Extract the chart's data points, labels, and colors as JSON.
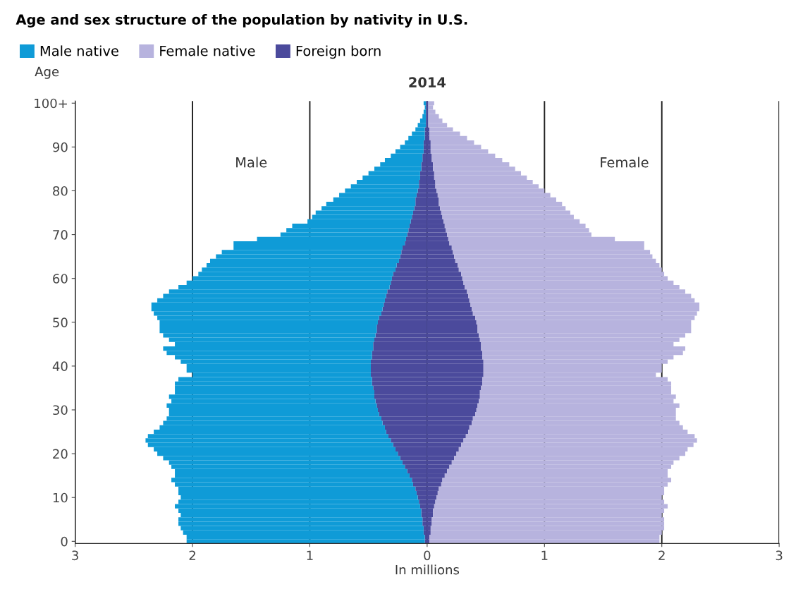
{
  "chart_data": {
    "type": "bar",
    "orientation": "horizontal",
    "stacked": true,
    "title": "Age and sex structure of the population by nativity in U.S.",
    "subtitle": "2014",
    "xlabel": "In millions",
    "ylabel": "Age",
    "annotations": [
      "Male",
      "Female"
    ],
    "categories": [
      "100+",
      null,
      null,
      null,
      null,
      null,
      null,
      null,
      null,
      null,
      "90",
      null,
      null,
      null,
      null,
      null,
      null,
      null,
      null,
      null,
      "80",
      null,
      null,
      null,
      null,
      null,
      null,
      null,
      null,
      null,
      "70",
      null,
      null,
      null,
      null,
      null,
      null,
      null,
      null,
      null,
      "60",
      null,
      null,
      null,
      null,
      null,
      null,
      null,
      null,
      null,
      "50",
      null,
      null,
      null,
      null,
      null,
      null,
      null,
      null,
      null,
      "40",
      null,
      null,
      null,
      null,
      null,
      null,
      null,
      null,
      null,
      "30",
      null,
      null,
      null,
      null,
      null,
      null,
      null,
      null,
      null,
      "20",
      null,
      null,
      null,
      null,
      null,
      null,
      null,
      null,
      null,
      "10",
      null,
      null,
      null,
      null,
      null,
      null,
      null,
      null,
      null,
      "0"
    ],
    "xlim": [
      -3,
      3
    ],
    "xticks": [
      {
        "value": -3,
        "label": "3"
      },
      {
        "value": -2,
        "label": "2"
      },
      {
        "value": -1,
        "label": "1"
      },
      0,
      1,
      2,
      3
    ],
    "grid": "x",
    "legend": "top left",
    "series": [
      {
        "name": "Foreign born",
        "color": "#4b4a9c",
        "values": [
          -0.01,
          -0.01,
          -0.01,
          -0.01,
          -0.01,
          -0.01,
          -0.02,
          -0.02,
          -0.02,
          -0.03,
          -0.03,
          -0.03,
          -0.04,
          -0.04,
          -0.05,
          -0.05,
          -0.06,
          -0.06,
          -0.07,
          -0.07,
          -0.08,
          -0.09,
          -0.1,
          -0.1,
          -0.11,
          -0.12,
          -0.13,
          -0.14,
          -0.15,
          -0.16,
          -0.17,
          -0.18,
          -0.19,
          -0.21,
          -0.22,
          -0.23,
          -0.24,
          -0.26,
          -0.27,
          -0.29,
          -0.3,
          -0.31,
          -0.32,
          -0.34,
          -0.35,
          -0.36,
          -0.37,
          -0.38,
          -0.39,
          -0.41,
          -0.42,
          -0.43,
          -0.43,
          -0.44,
          -0.45,
          -0.46,
          -0.46,
          -0.47,
          -0.47,
          -0.48,
          -0.48,
          -0.48,
          -0.48,
          -0.47,
          -0.47,
          -0.46,
          -0.45,
          -0.45,
          -0.44,
          -0.43,
          -0.42,
          -0.41,
          -0.39,
          -0.38,
          -0.36,
          -0.35,
          -0.33,
          -0.31,
          -0.29,
          -0.27,
          -0.25,
          -0.23,
          -0.21,
          -0.19,
          -0.17,
          -0.15,
          -0.13,
          -0.12,
          -0.1,
          -0.09,
          -0.08,
          -0.07,
          -0.06,
          -0.05,
          -0.05,
          -0.04,
          -0.04,
          -0.03,
          -0.03,
          -0.02,
          -0.02
        ]
      },
      {
        "name": "Male native",
        "color": "#0f9bd7",
        "values": [
          -0.02,
          -0.01,
          -0.02,
          -0.03,
          -0.05,
          -0.07,
          -0.08,
          -0.11,
          -0.14,
          -0.16,
          -0.2,
          -0.24,
          -0.27,
          -0.32,
          -0.35,
          -0.4,
          -0.44,
          -0.49,
          -0.53,
          -0.58,
          -0.62,
          -0.66,
          -0.7,
          -0.76,
          -0.79,
          -0.83,
          -0.85,
          -0.88,
          -1.0,
          -1.04,
          -1.08,
          -1.27,
          -1.46,
          -1.44,
          -1.53,
          -1.57,
          -1.61,
          -1.62,
          -1.65,
          -1.66,
          -1.7,
          -1.74,
          -1.8,
          -1.86,
          -1.9,
          -1.94,
          -1.98,
          -1.97,
          -1.94,
          -1.89,
          -1.86,
          -1.85,
          -1.85,
          -1.81,
          -1.75,
          -1.69,
          -1.79,
          -1.75,
          -1.68,
          -1.62,
          -1.57,
          -1.57,
          -1.52,
          -1.65,
          -1.68,
          -1.69,
          -1.7,
          -1.75,
          -1.74,
          -1.79,
          -1.78,
          -1.79,
          -1.83,
          -1.87,
          -1.92,
          -1.98,
          -2.05,
          -2.09,
          -2.09,
          -2.06,
          -2.05,
          -2.02,
          -1.99,
          -1.99,
          -1.98,
          -2.0,
          -2.05,
          -2.03,
          -2.02,
          -2.03,
          -2.02,
          -2.05,
          -2.09,
          -2.07,
          -2.05,
          -2.08,
          -2.08,
          -2.07,
          -2.05,
          -2.03,
          -2.03
        ]
      },
      {
        "color": "#4b4a9c",
        "values": [
          0.01,
          0.01,
          0.01,
          0.01,
          0.01,
          0.01,
          0.02,
          0.02,
          0.02,
          0.03,
          0.03,
          0.03,
          0.04,
          0.04,
          0.05,
          0.05,
          0.06,
          0.06,
          0.07,
          0.07,
          0.08,
          0.09,
          0.1,
          0.1,
          0.11,
          0.12,
          0.13,
          0.14,
          0.15,
          0.16,
          0.17,
          0.18,
          0.19,
          0.21,
          0.22,
          0.23,
          0.24,
          0.26,
          0.27,
          0.29,
          0.3,
          0.31,
          0.32,
          0.34,
          0.35,
          0.36,
          0.37,
          0.38,
          0.39,
          0.41,
          0.42,
          0.43,
          0.43,
          0.44,
          0.45,
          0.46,
          0.46,
          0.47,
          0.47,
          0.48,
          0.48,
          0.48,
          0.48,
          0.47,
          0.47,
          0.46,
          0.45,
          0.45,
          0.44,
          0.43,
          0.42,
          0.41,
          0.39,
          0.38,
          0.36,
          0.35,
          0.33,
          0.31,
          0.29,
          0.27,
          0.25,
          0.23,
          0.21,
          0.19,
          0.17,
          0.15,
          0.13,
          0.12,
          0.1,
          0.09,
          0.08,
          0.07,
          0.06,
          0.05,
          0.05,
          0.04,
          0.04,
          0.03,
          0.03,
          0.02,
          0.02
        ]
      },
      {
        "name": "Female native",
        "color": "#b7b3de",
        "values": [
          0.05,
          0.04,
          0.06,
          0.09,
          0.12,
          0.16,
          0.2,
          0.26,
          0.32,
          0.37,
          0.43,
          0.49,
          0.54,
          0.6,
          0.65,
          0.7,
          0.74,
          0.79,
          0.83,
          0.88,
          0.92,
          0.96,
          1.0,
          1.05,
          1.07,
          1.1,
          1.12,
          1.16,
          1.2,
          1.22,
          1.23,
          1.42,
          1.66,
          1.64,
          1.68,
          1.69,
          1.71,
          1.72,
          1.73,
          1.73,
          1.75,
          1.79,
          1.83,
          1.86,
          1.9,
          1.92,
          1.95,
          1.94,
          1.91,
          1.87,
          1.83,
          1.82,
          1.82,
          1.76,
          1.7,
          1.64,
          1.74,
          1.71,
          1.63,
          1.57,
          1.52,
          1.52,
          1.47,
          1.58,
          1.61,
          1.62,
          1.63,
          1.67,
          1.66,
          1.72,
          1.7,
          1.71,
          1.73,
          1.77,
          1.82,
          1.87,
          1.95,
          1.99,
          1.98,
          1.95,
          1.95,
          1.92,
          1.89,
          1.89,
          1.88,
          1.9,
          1.95,
          1.93,
          1.92,
          1.93,
          1.92,
          1.95,
          1.99,
          1.97,
          1.95,
          1.98,
          1.98,
          1.99,
          1.97,
          1.96,
          1.96
        ]
      }
    ]
  }
}
